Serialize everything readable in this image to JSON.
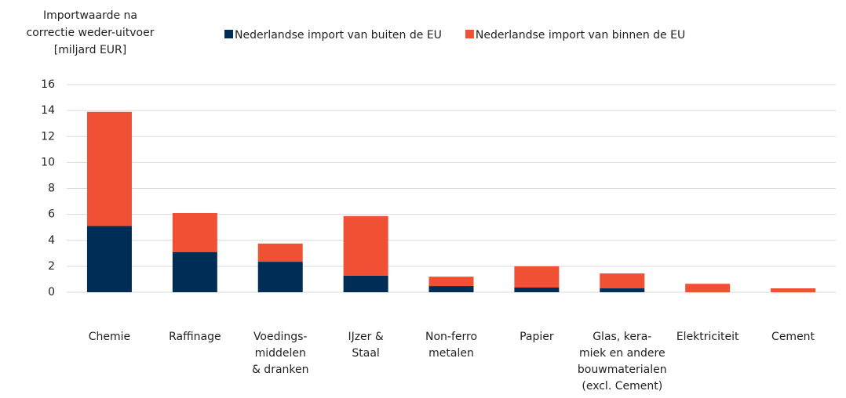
{
  "chart_data": {
    "type": "stacked_bar",
    "ylabel": [
      "Importwaarde na",
      "correctie weder-uitvoer",
      "[miljard EUR]"
    ],
    "categories": [
      [
        "Chemie"
      ],
      [
        "Raffinage"
      ],
      [
        "Voedings-",
        "middelen",
        "& dranken"
      ],
      [
        "IJzer &",
        "Staal"
      ],
      [
        "Non-ferro",
        "metalen"
      ],
      [
        "Papier"
      ],
      [
        "Glas, kera-",
        "miek en andere",
        "bouwmaterialen",
        "(excl. Cement)"
      ],
      [
        "Elektriciteit"
      ],
      [
        "Cement"
      ]
    ],
    "series": [
      {
        "name": "Nederlandse import van buiten de EU",
        "color": "#002d56",
        "values": [
          5.1,
          3.1,
          2.35,
          1.27,
          0.48,
          0.36,
          0.3,
          0,
          0
        ]
      },
      {
        "name": "Nederlandse import van binnen de EU",
        "color": "#f05135",
        "values": [
          8.8,
          3.0,
          1.4,
          4.6,
          0.72,
          1.64,
          1.15,
          0.65,
          0.3
        ]
      }
    ],
    "ylim": [
      0,
      16
    ],
    "yticks": [
      0,
      2,
      4,
      6,
      8,
      10,
      12,
      14,
      16
    ],
    "grid": true
  }
}
